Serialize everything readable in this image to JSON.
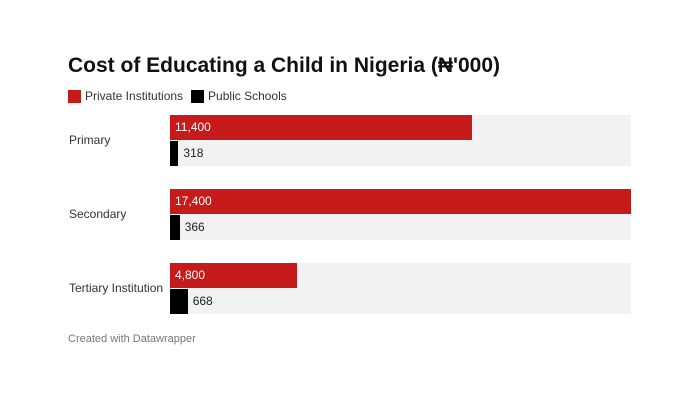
{
  "chart_data": {
    "type": "bar",
    "orientation": "horizontal",
    "title": "Cost of Educating a Child in Nigeria (₦'000)",
    "categories": [
      "Primary",
      "Secondary",
      "Tertiary Institution"
    ],
    "series": [
      {
        "name": "Private Institutions",
        "values": [
          11400,
          17400,
          4800
        ],
        "labels": [
          "11,400",
          "17,400",
          "4,800"
        ],
        "color": "#c71b1b"
      },
      {
        "name": "Public Schools",
        "values": [
          318,
          366,
          668
        ],
        "labels": [
          "318",
          "366",
          "668"
        ],
        "color": "#000000"
      }
    ],
    "xlim": [
      0,
      17400
    ],
    "legend": "top-left",
    "grid": false
  },
  "footer": "Created with Datawrapper"
}
